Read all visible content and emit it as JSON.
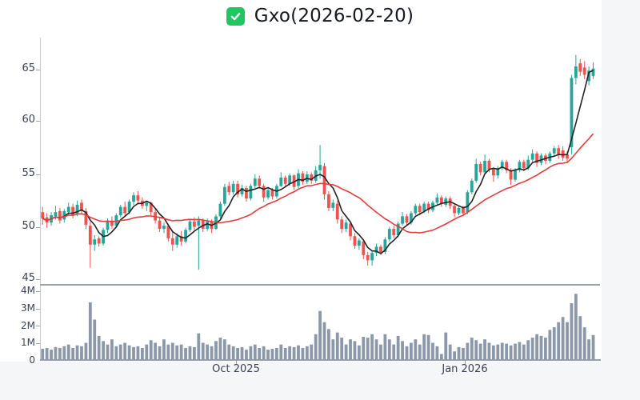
{
  "title": {
    "text": "Gxo(2026-02-20)",
    "icon": "checked-checkbox-icon",
    "icon_color": "#1fc661"
  },
  "chart_data": {
    "type": "candlestick",
    "title": "Gxo(2026-02-20)",
    "price_axis": {
      "ticks": [
        "65",
        "60",
        "55",
        "50",
        "45"
      ],
      "range": [
        44.8,
        68.0
      ],
      "grid": false
    },
    "volume_axis": {
      "ticks": [
        "4M",
        "3M",
        "2M",
        "1M",
        "0"
      ],
      "range_millions": [
        0,
        4.3
      ]
    },
    "x_ticks": [
      {
        "label": "Oct 2025"
      },
      {
        "label": "Jan 2026"
      }
    ],
    "colors": {
      "up": "#26a69a",
      "down": "#ef5350",
      "volume": "#8b98a9",
      "ma_short": "#222222",
      "ma_long": "#e13d3d"
    },
    "overlays": [
      {
        "name": "short-moving-average",
        "type": "sma",
        "window": 5,
        "color": "#222222"
      },
      {
        "name": "long-moving-average",
        "type": "sma",
        "window": 20,
        "color": "#e13d3d"
      }
    ],
    "candles": [
      [
        51.4,
        51.9,
        50.2,
        50.8
      ],
      [
        50.9,
        51.3,
        49.9,
        50.4
      ],
      [
        50.4,
        51.4,
        50.1,
        51.1
      ],
      [
        51.0,
        52.0,
        50.7,
        51.4
      ],
      [
        51.5,
        51.8,
        50.3,
        50.6
      ],
      [
        50.7,
        51.7,
        50.4,
        51.5
      ],
      [
        51.4,
        52.3,
        51.1,
        51.9
      ],
      [
        51.9,
        52.2,
        50.8,
        51.1
      ],
      [
        51.2,
        52.5,
        51.0,
        52.1
      ],
      [
        52.3,
        52.6,
        51.2,
        51.5
      ],
      [
        51.5,
        51.8,
        49.8,
        50.2
      ],
      [
        50.1,
        50.5,
        46.1,
        48.3
      ],
      [
        48.3,
        49.2,
        47.7,
        48.8
      ],
      [
        48.9,
        49.1,
        48.1,
        48.4
      ],
      [
        48.4,
        49.9,
        48.2,
        49.7
      ],
      [
        49.7,
        50.8,
        49.4,
        50.6
      ],
      [
        50.6,
        51.0,
        49.8,
        50.1
      ],
      [
        50.1,
        51.3,
        49.9,
        51.1
      ],
      [
        51.1,
        52.1,
        50.9,
        51.9
      ],
      [
        51.9,
        52.4,
        51.0,
        51.3
      ],
      [
        51.4,
        52.6,
        51.2,
        52.4
      ],
      [
        52.4,
        53.3,
        52.1,
        53.0
      ],
      [
        53.0,
        53.4,
        52.2,
        52.5
      ],
      [
        52.5,
        52.8,
        51.7,
        52.0
      ],
      [
        52.0,
        52.5,
        51.5,
        52.3
      ],
      [
        52.3,
        52.4,
        51.1,
        51.4
      ],
      [
        51.4,
        51.7,
        50.3,
        50.6
      ],
      [
        50.6,
        50.9,
        49.5,
        49.8
      ],
      [
        49.8,
        50.4,
        49.4,
        50.1
      ],
      [
        50.1,
        50.3,
        48.6,
        48.9
      ],
      [
        48.9,
        49.5,
        47.7,
        48.3
      ],
      [
        48.3,
        49.4,
        48.0,
        49.1
      ],
      [
        49.1,
        49.6,
        48.2,
        48.6
      ],
      [
        48.6,
        49.9,
        48.4,
        49.7
      ],
      [
        49.7,
        50.7,
        49.5,
        50.5
      ],
      [
        50.5,
        50.9,
        49.7,
        50.0
      ],
      [
        50.1,
        51.0,
        45.9,
        50.6
      ],
      [
        50.6,
        50.8,
        49.5,
        49.8
      ],
      [
        49.8,
        50.8,
        49.6,
        50.5
      ],
      [
        50.5,
        50.7,
        49.4,
        49.8
      ],
      [
        49.8,
        51.2,
        49.7,
        51.0
      ],
      [
        51.0,
        52.4,
        50.8,
        52.2
      ],
      [
        52.2,
        54.1,
        52.0,
        53.8
      ],
      [
        53.9,
        54.3,
        53.0,
        53.3
      ],
      [
        53.3,
        54.4,
        53.1,
        54.1
      ],
      [
        54.1,
        54.4,
        52.8,
        53.1
      ],
      [
        53.1,
        54.0,
        52.9,
        53.7
      ],
      [
        53.7,
        53.9,
        52.4,
        52.7
      ],
      [
        52.7,
        54.1,
        52.5,
        53.9
      ],
      [
        53.9,
        55.0,
        53.7,
        54.6
      ],
      [
        54.6,
        54.9,
        53.6,
        53.9
      ],
      [
        53.9,
        54.1,
        52.4,
        52.8
      ],
      [
        52.8,
        53.8,
        52.6,
        53.5
      ],
      [
        53.5,
        53.7,
        52.6,
        52.9
      ],
      [
        52.9,
        54.1,
        52.7,
        53.9
      ],
      [
        53.9,
        55.2,
        53.8,
        54.7
      ],
      [
        54.7,
        54.9,
        53.8,
        54.1
      ],
      [
        54.1,
        55.1,
        53.9,
        54.9
      ],
      [
        54.9,
        55.0,
        53.5,
        53.8
      ],
      [
        53.9,
        55.5,
        53.7,
        55.1
      ],
      [
        55.1,
        55.3,
        54.0,
        54.3
      ],
      [
        54.3,
        55.3,
        54.1,
        55.0
      ],
      [
        55.0,
        55.2,
        54.1,
        54.4
      ],
      [
        54.4,
        55.8,
        54.2,
        55.4
      ],
      [
        55.4,
        57.8,
        54.6,
        55.9
      ],
      [
        55.8,
        56.1,
        52.6,
        53.1
      ],
      [
        53.1,
        53.4,
        51.5,
        51.8
      ],
      [
        51.8,
        52.6,
        51.5,
        52.3
      ],
      [
        52.2,
        52.5,
        50.3,
        50.7
      ],
      [
        50.7,
        51.0,
        49.4,
        49.8
      ],
      [
        49.8,
        50.7,
        49.5,
        50.4
      ],
      [
        50.3,
        50.5,
        48.7,
        49.1
      ],
      [
        49.1,
        49.4,
        47.9,
        48.2
      ],
      [
        48.2,
        48.9,
        47.8,
        48.7
      ],
      [
        48.6,
        48.8,
        46.9,
        47.3
      ],
      [
        47.3,
        47.6,
        46.3,
        46.8
      ],
      [
        46.8,
        47.7,
        46.3,
        47.5
      ],
      [
        47.5,
        48.4,
        47.2,
        48.1
      ],
      [
        48.1,
        48.3,
        47.3,
        47.6
      ],
      [
        47.6,
        49.0,
        47.4,
        48.8
      ],
      [
        48.8,
        50.0,
        48.6,
        49.8
      ],
      [
        49.8,
        50.1,
        48.9,
        49.2
      ],
      [
        49.2,
        50.5,
        49.0,
        50.3
      ],
      [
        50.3,
        51.4,
        50.1,
        51.0
      ],
      [
        51.0,
        51.2,
        50.1,
        50.4
      ],
      [
        50.4,
        51.5,
        50.2,
        51.3
      ],
      [
        51.3,
        52.2,
        51.1,
        52.0
      ],
      [
        52.0,
        52.2,
        51.1,
        51.4
      ],
      [
        51.5,
        52.4,
        51.3,
        52.2
      ],
      [
        52.2,
        52.4,
        51.3,
        51.6
      ],
      [
        51.6,
        52.5,
        51.4,
        52.3
      ],
      [
        52.3,
        53.2,
        52.1,
        52.8
      ],
      [
        52.8,
        53.0,
        51.9,
        52.2
      ],
      [
        52.1,
        52.9,
        51.9,
        52.7
      ],
      [
        52.7,
        52.9,
        51.7,
        52.0
      ],
      [
        52.0,
        52.2,
        50.9,
        51.3
      ],
      [
        51.3,
        52.0,
        51.1,
        51.8
      ],
      [
        51.8,
        52.0,
        51.0,
        51.3
      ],
      [
        51.4,
        53.5,
        51.2,
        53.3
      ],
      [
        53.3,
        54.6,
        53.1,
        54.4
      ],
      [
        54.4,
        56.5,
        54.2,
        56.0
      ],
      [
        56.0,
        56.2,
        54.9,
        55.2
      ],
      [
        55.2,
        56.9,
        55.0,
        56.3
      ],
      [
        56.3,
        56.5,
        55.2,
        55.5
      ],
      [
        55.5,
        55.7,
        54.3,
        54.9
      ],
      [
        54.9,
        55.8,
        54.6,
        55.6
      ],
      [
        55.6,
        56.4,
        55.4,
        56.2
      ],
      [
        56.2,
        56.4,
        55.1,
        55.4
      ],
      [
        55.4,
        55.6,
        54.0,
        54.5
      ],
      [
        54.5,
        55.6,
        54.3,
        55.4
      ],
      [
        55.4,
        56.4,
        55.2,
        56.2
      ],
      [
        56.2,
        56.4,
        55.3,
        55.6
      ],
      [
        55.6,
        56.8,
        55.4,
        56.4
      ],
      [
        56.4,
        57.4,
        56.2,
        57.0
      ],
      [
        57.0,
        57.2,
        55.7,
        56.1
      ],
      [
        56.1,
        57.0,
        55.9,
        56.8
      ],
      [
        56.8,
        57.0,
        56.0,
        56.3
      ],
      [
        56.3,
        57.2,
        56.1,
        57.0
      ],
      [
        57.0,
        57.7,
        56.8,
        57.5
      ],
      [
        57.5,
        57.8,
        56.5,
        56.9
      ],
      [
        57.3,
        57.7,
        56.3,
        56.6
      ],
      [
        56.9,
        57.2,
        56.2,
        56.5
      ],
      [
        57.6,
        64.5,
        56.9,
        64.2
      ],
      [
        64.2,
        66.4,
        63.6,
        65.3
      ],
      [
        65.6,
        66.0,
        64.4,
        64.8
      ],
      [
        65.2,
        65.8,
        64.1,
        64.5
      ],
      [
        63.9,
        65.3,
        63.5,
        64.9
      ],
      [
        64.4,
        65.7,
        64.1,
        65.1
      ]
    ],
    "volumes_millions": [
      0.65,
      0.7,
      0.6,
      0.75,
      0.7,
      0.8,
      0.9,
      0.7,
      0.85,
      0.8,
      1.0,
      3.35,
      2.35,
      1.4,
      1.1,
      0.9,
      1.2,
      0.8,
      0.9,
      1.0,
      0.85,
      0.75,
      0.8,
      0.7,
      0.9,
      1.15,
      1.0,
      0.8,
      1.2,
      0.9,
      1.0,
      0.85,
      0.9,
      0.7,
      0.8,
      0.75,
      1.55,
      1.0,
      0.9,
      0.8,
      1.1,
      1.3,
      1.2,
      0.9,
      0.8,
      0.7,
      0.75,
      0.6,
      0.8,
      0.9,
      0.7,
      0.8,
      0.6,
      0.65,
      0.7,
      0.9,
      0.7,
      0.8,
      0.75,
      0.85,
      0.7,
      0.8,
      0.9,
      1.5,
      2.85,
      2.2,
      1.8,
      1.2,
      1.6,
      1.3,
      0.9,
      1.2,
      1.1,
      0.85,
      1.35,
      1.3,
      1.5,
      1.2,
      0.9,
      1.5,
      1.2,
      0.9,
      1.4,
      1.1,
      0.8,
      1.0,
      1.2,
      0.9,
      1.5,
      1.45,
      1.0,
      0.8,
      0.35,
      1.6,
      0.9,
      0.5,
      0.75,
      0.7,
      1.0,
      1.3,
      1.15,
      0.95,
      1.2,
      1.0,
      0.85,
      0.9,
      1.0,
      0.95,
      0.85,
      0.95,
      1.05,
      0.9,
      1.15,
      1.3,
      1.5,
      1.4,
      1.3,
      1.75,
      1.9,
      2.2,
      2.5,
      2.2,
      3.3,
      3.85,
      2.55,
      1.9,
      1.2,
      1.45
    ]
  }
}
